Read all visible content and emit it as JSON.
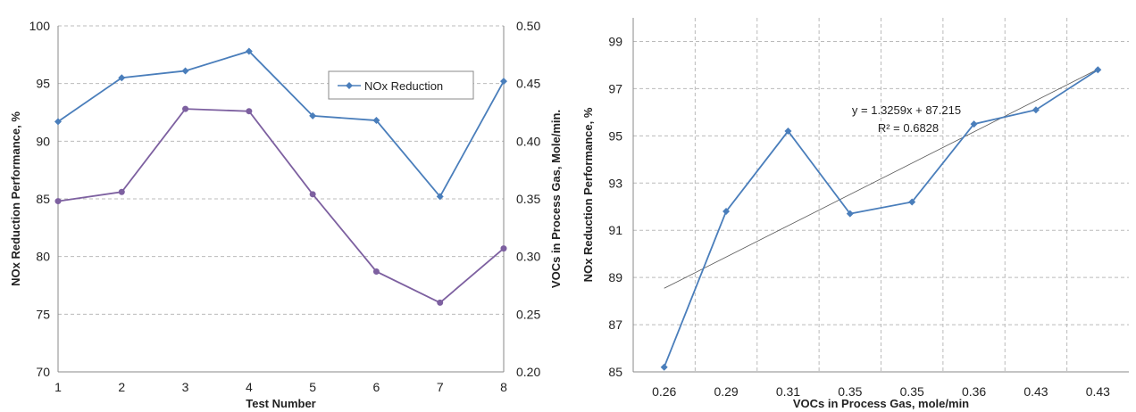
{
  "colors": {
    "nox": "#4a7ebb",
    "voc": "#7d60a0",
    "trend": "#555555",
    "grid": "#bbbbbb"
  },
  "chart_data": [
    {
      "type": "line",
      "x": [
        1,
        2,
        3,
        4,
        5,
        6,
        7,
        8
      ],
      "xlabel": "Test Number",
      "ylabel": "NOx Reduction Performance, %",
      "y2label": "VOCs in Process Gas, Mole/min.",
      "ylim": [
        70,
        100
      ],
      "y2lim": [
        0.2,
        0.5
      ],
      "yticks": [
        "70",
        "75",
        "80",
        "85",
        "90",
        "95",
        "100"
      ],
      "y2ticks": [
        "0.20",
        "0.25",
        "0.30",
        "0.35",
        "0.40",
        "0.45",
        "0.50"
      ],
      "xticks": [
        "1",
        "2",
        "3",
        "4",
        "5",
        "6",
        "7",
        "8"
      ],
      "grid": true,
      "legend_position": "top-right",
      "series": [
        {
          "name": "NOx Reduction",
          "axis": "left",
          "marker": "diamond",
          "values": [
            91.7,
            95.5,
            96.1,
            97.8,
            92.2,
            91.8,
            85.2,
            95.2
          ]
        },
        {
          "axis": "right",
          "marker": "circle",
          "values": [
            0.348,
            0.356,
            0.428,
            0.426,
            0.354,
            0.287,
            0.26,
            0.307
          ]
        }
      ]
    },
    {
      "type": "line",
      "categories": [
        "0.26",
        "0.29",
        "0.31",
        "0.35",
        "0.35",
        "0.36",
        "0.43",
        "0.43"
      ],
      "xlabel": "VOCs in Process Gas, mole/min",
      "ylabel": "NOx Reduction Performance, %",
      "ylim": [
        85,
        100
      ],
      "yticks": [
        "85",
        "87",
        "89",
        "91",
        "93",
        "95",
        "97",
        "99"
      ],
      "grid": true,
      "series": [
        {
          "marker": "diamond",
          "values": [
            85.2,
            91.8,
            95.2,
            91.7,
            92.2,
            95.5,
            96.1,
            97.8
          ]
        }
      ],
      "trendline": {
        "slope": 1.3259,
        "intercept": 87.215
      },
      "annotations": [
        "y = 1.3259x + 87.215",
        "R² = 0.6828"
      ]
    }
  ]
}
